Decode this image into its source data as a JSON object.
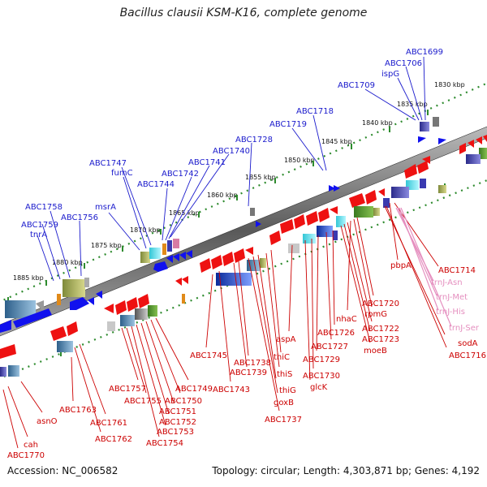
{
  "title": "Bacillus clausii KSM-K16, complete genome",
  "footer": {
    "accession": "Accession: NC_006582",
    "topology": "Topology: circular;",
    "length": "Length: 4,303,871 bp;",
    "genes": "Genes: 4,192"
  },
  "colors": {
    "plus_strand_label": "#1a1acc",
    "minus_strand_label": "#cc0000",
    "trna_label": "#e58fbf",
    "backbone": "#888888",
    "ticks": "#2e8b2e"
  },
  "kbp_ticks": [
    "1830 kbp",
    "1835 kbp",
    "1840 kbp",
    "1845 kbp",
    "1850 kbp",
    "1855 kbp",
    "1860 kbp",
    "1865 kbp",
    "1870 kbp",
    "1875 kbp",
    "1880 kbp",
    "1885 kbp"
  ],
  "plus_genes": [
    "ABC1699",
    "ABC1706",
    "ispG",
    "ABC1709",
    "ABC1718",
    "ABC1719",
    "ABC1728",
    "ABC1740",
    "ABC1741",
    "ABC1742",
    "ABC1744",
    "ABC1747",
    "fumC",
    "msrA",
    "ABC1756",
    "ABC1758",
    "ABC1759",
    "tnrA"
  ],
  "minus_genes": [
    "ABC1714",
    "pbpA",
    "ABC1716",
    "sodA",
    "ABC1720",
    "rpmG",
    "nhaC",
    "ABC1722",
    "ABC1723",
    "moeB",
    "ABC1726",
    "ABC1727",
    "ABC1729",
    "ABC1730",
    "glcK",
    "aspA",
    "thiC",
    "thiS",
    "thiG",
    "goxB",
    "ABC1737",
    "ABC1738",
    "ABC1739",
    "ABC1743",
    "ABC1745",
    "ABC1749",
    "ABC1750",
    "ABC1751",
    "ABC1752",
    "ABC1753",
    "ABC1754",
    "ABC1755",
    "ABC1757",
    "ABC1761",
    "ABC1762",
    "ABC1763",
    "asnO",
    "cah",
    "ABC1770"
  ],
  "trna_genes": [
    "trnJ-Asn",
    "trnJ-Met",
    "trnJ-His",
    "trnJ-Ser"
  ]
}
